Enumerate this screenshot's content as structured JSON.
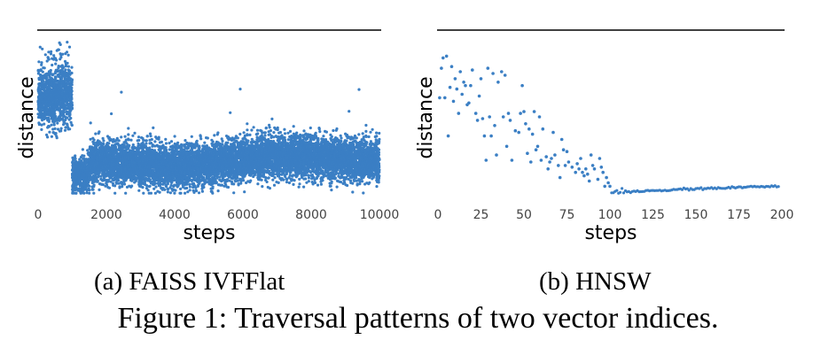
{
  "figure": {
    "caption": "Figure 1: Traversal patterns of two vector indices."
  },
  "colors": {
    "points": "#3b7fc4",
    "frame": "#000000"
  },
  "chart_data": [
    {
      "type": "scatter",
      "caption": "(a) FAISS IVFFlat",
      "xlabel": "steps",
      "ylabel": "distance",
      "xlim": [
        0,
        10000
      ],
      "xticks": [
        0,
        2000,
        4000,
        6000,
        8000,
        10000
      ],
      "xtick_labels": [
        "0",
        "2000",
        "4000",
        "6000",
        "8000",
        "10000"
      ],
      "yticks": [],
      "ylim": [
        0,
        1
      ],
      "grid": false,
      "n_points": 10000,
      "segments": [
        {
          "x_range": [
            0,
            1000
          ],
          "y_mean": 0.62,
          "y_spread": 0.09,
          "y_max": 0.96
        },
        {
          "x_range": [
            1000,
            1500
          ],
          "y_mean": 0.17,
          "y_spread": 0.05
        },
        {
          "x_range": [
            1500,
            10000
          ],
          "y_mean_start": 0.22,
          "y_mean_end": 0.27,
          "y_spread": 0.06,
          "y_max": 0.49
        }
      ]
    },
    {
      "type": "scatter",
      "caption": "(b) HNSW",
      "xlabel": "steps",
      "ylabel": "distance",
      "xlim": [
        0,
        200
      ],
      "xticks": [
        0,
        25,
        50,
        75,
        100,
        125,
        150,
        175,
        200
      ],
      "xtick_labels": [
        "0",
        "25",
        "50",
        "75",
        "100",
        "125",
        "150",
        "175",
        "200"
      ],
      "yticks": [],
      "ylim": [
        0,
        1
      ],
      "grid": false,
      "points": [
        [
          1,
          0.61
        ],
        [
          2,
          0.78
        ],
        [
          3,
          0.84
        ],
        [
          4,
          0.61
        ],
        [
          5,
          0.85
        ],
        [
          6,
          0.39
        ],
        [
          7,
          0.67
        ],
        [
          8,
          0.79
        ],
        [
          9,
          0.59
        ],
        [
          10,
          0.72
        ],
        [
          11,
          0.66
        ],
        [
          12,
          0.52
        ],
        [
          13,
          0.76
        ],
        [
          14,
          0.63
        ],
        [
          15,
          0.7
        ],
        [
          16,
          0.68
        ],
        [
          17,
          0.57
        ],
        [
          18,
          0.58
        ],
        [
          19,
          0.68
        ],
        [
          20,
          0.77
        ],
        [
          22,
          0.52
        ],
        [
          23,
          0.48
        ],
        [
          24,
          0.62
        ],
        [
          25,
          0.72
        ],
        [
          26,
          0.49
        ],
        [
          27,
          0.39
        ],
        [
          28,
          0.25
        ],
        [
          29,
          0.78
        ],
        [
          30,
          0.5
        ],
        [
          31,
          0.39
        ],
        [
          32,
          0.75
        ],
        [
          33,
          0.45
        ],
        [
          34,
          0.28
        ],
        [
          35,
          0.7
        ],
        [
          37,
          0.76
        ],
        [
          38,
          0.5
        ],
        [
          39,
          0.74
        ],
        [
          40,
          0.33
        ],
        [
          41,
          0.52
        ],
        [
          42,
          0.48
        ],
        [
          43,
          0.25
        ],
        [
          45,
          0.42
        ],
        [
          47,
          0.41
        ],
        [
          48,
          0.52
        ],
        [
          49,
          0.68
        ],
        [
          50,
          0.53
        ],
        [
          51,
          0.46
        ],
        [
          52,
          0.29
        ],
        [
          53,
          0.43
        ],
        [
          54,
          0.24
        ],
        [
          55,
          0.4
        ],
        [
          56,
          0.53
        ],
        [
          57,
          0.31
        ],
        [
          58,
          0.33
        ],
        [
          59,
          0.5
        ],
        [
          60,
          0.25
        ],
        [
          61,
          0.43
        ],
        [
          63,
          0.27
        ],
        [
          64,
          0.2
        ],
        [
          65,
          0.24
        ],
        [
          66,
          0.26
        ],
        [
          67,
          0.41
        ],
        [
          68,
          0.28
        ],
        [
          70,
          0.22
        ],
        [
          71,
          0.15
        ],
        [
          72,
          0.37
        ],
        [
          73,
          0.31
        ],
        [
          74,
          0.22
        ],
        [
          75,
          0.3
        ],
        [
          76,
          0.24
        ],
        [
          78,
          0.21
        ],
        [
          80,
          0.18
        ],
        [
          81,
          0.23
        ],
        [
          82,
          0.2
        ],
        [
          83,
          0.26
        ],
        [
          84,
          0.18
        ],
        [
          85,
          0.16
        ],
        [
          86,
          0.2
        ],
        [
          87,
          0.17
        ],
        [
          88,
          0.13
        ],
        [
          89,
          0.28
        ],
        [
          90,
          0.22
        ],
        [
          91,
          0.2
        ],
        [
          93,
          0.14
        ],
        [
          94,
          0.26
        ],
        [
          95,
          0.21
        ],
        [
          96,
          0.18
        ],
        [
          97,
          0.1
        ],
        [
          98,
          0.15
        ],
        [
          99,
          0.12
        ],
        [
          100,
          0.1
        ]
      ],
      "tail": {
        "x_range": [
          101,
          198
        ],
        "y_start": 0.055,
        "y_end": 0.1
      }
    }
  ]
}
